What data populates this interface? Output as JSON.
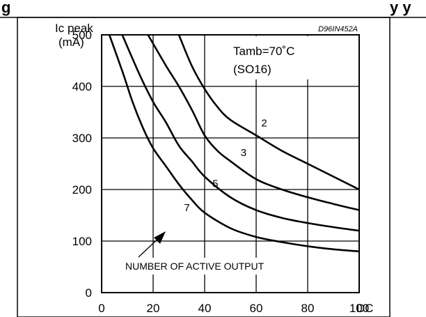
{
  "header_text": "g",
  "header_text_right": "y y",
  "chart_data": {
    "type": "line",
    "reference_code": "D96IN452A",
    "ylabel_lines": [
      "Ic peak",
      "(mA)"
    ],
    "xlabel": "DC",
    "xlim": [
      0,
      100
    ],
    "ylim": [
      0,
      500
    ],
    "x_ticks": [
      0,
      20,
      40,
      60,
      80,
      100
    ],
    "y_ticks": [
      0,
      100,
      200,
      300,
      400,
      500
    ],
    "grid": true,
    "annotation_lines": [
      "Tamb=70˚C",
      "(SO16)"
    ],
    "arrow_note": "NUMBER OF ACTIVE OUTPUT",
    "series": [
      {
        "name": "2",
        "points": [
          [
            30,
            500
          ],
          [
            35,
            440
          ],
          [
            40,
            395
          ],
          [
            45,
            360
          ],
          [
            50,
            335
          ],
          [
            60,
            305
          ],
          [
            70,
            275
          ],
          [
            80,
            250
          ],
          [
            90,
            225
          ],
          [
            100,
            200
          ]
        ]
      },
      {
        "name": "3",
        "points": [
          [
            18,
            500
          ],
          [
            25,
            440
          ],
          [
            30,
            400
          ],
          [
            35,
            355
          ],
          [
            40,
            305
          ],
          [
            45,
            275
          ],
          [
            50,
            255
          ],
          [
            60,
            220
          ],
          [
            70,
            200
          ],
          [
            80,
            185
          ],
          [
            90,
            172
          ],
          [
            100,
            160
          ]
        ]
      },
      {
        "name": "5",
        "points": [
          [
            8,
            500
          ],
          [
            15,
            420
          ],
          [
            20,
            370
          ],
          [
            25,
            330
          ],
          [
            30,
            285
          ],
          [
            35,
            255
          ],
          [
            40,
            225
          ],
          [
            50,
            185
          ],
          [
            60,
            160
          ],
          [
            70,
            145
          ],
          [
            80,
            135
          ],
          [
            90,
            127
          ],
          [
            100,
            120
          ]
        ]
      },
      {
        "name": "7",
        "points": [
          [
            3,
            500
          ],
          [
            8,
            430
          ],
          [
            12,
            370
          ],
          [
            16,
            320
          ],
          [
            20,
            280
          ],
          [
            25,
            245
          ],
          [
            30,
            210
          ],
          [
            35,
            180
          ],
          [
            40,
            155
          ],
          [
            50,
            125
          ],
          [
            60,
            108
          ],
          [
            70,
            98
          ],
          [
            80,
            90
          ],
          [
            90,
            84
          ],
          [
            100,
            80
          ]
        ]
      }
    ],
    "series_label_positions": [
      [
        62,
        322
      ],
      [
        54,
        265
      ],
      [
        43,
        205
      ],
      [
        32,
        158
      ]
    ]
  }
}
